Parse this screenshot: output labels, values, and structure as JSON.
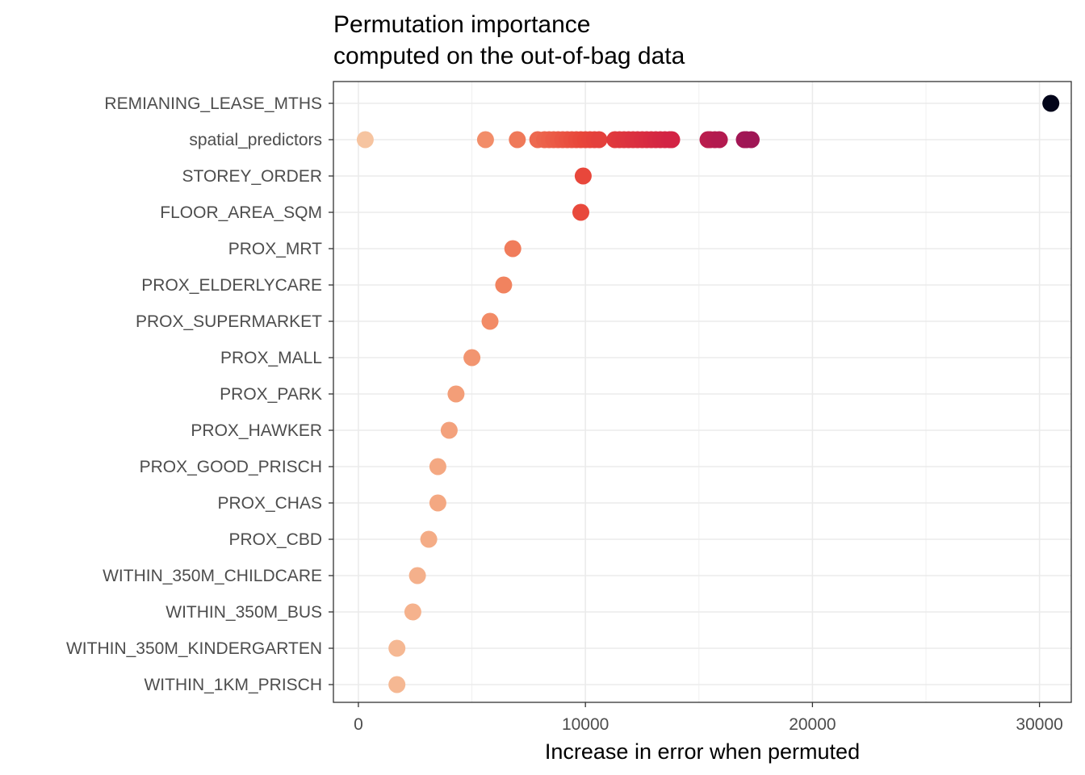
{
  "chart_data": {
    "type": "scatter",
    "title": "Permutation importance",
    "subtitle": "computed on the out-of-bag data",
    "xlabel": "Increase in error when permuted",
    "ylabel": "",
    "xlim": [
      -1100,
      31400
    ],
    "xticks": [
      0,
      10000,
      20000,
      30000
    ],
    "xtick_labels": [
      "0",
      "10000",
      "20000",
      "30000"
    ],
    "grid": true,
    "legend": "none",
    "colormap": "rocket (reversed)",
    "categories": [
      "REMIANING_LEASE_MTHS",
      "spatial_predictors",
      "STOREY_ORDER",
      "FLOOR_AREA_SQM",
      "PROX_MRT",
      "PROX_ELDERLYCARE",
      "PROX_SUPERMARKET",
      "PROX_MALL",
      "PROX_PARK",
      "PROX_HAWKER",
      "PROX_GOOD_PRISCH",
      "PROX_CHAS",
      "PROX_CBD",
      "WITHIN_350M_CHILDCARE",
      "WITHIN_350M_BUS",
      "WITHIN_350M_KINDERGARTEN",
      "WITHIN_1KM_PRISCH"
    ],
    "points": [
      {
        "variable": "REMIANING_LEASE_MTHS",
        "values": [
          30500
        ]
      },
      {
        "variable": "spatial_predictors",
        "values": [
          300,
          5600,
          7000,
          7900,
          8200,
          8400,
          8600,
          8800,
          9000,
          9200,
          9400,
          9600,
          9800,
          10000,
          10200,
          10400,
          10600,
          11300,
          11500,
          11700,
          11900,
          12100,
          12300,
          12500,
          12700,
          12900,
          13100,
          13300,
          13500,
          13700,
          13800,
          15400,
          15500,
          15700,
          15900,
          17000,
          17100,
          17300
        ]
      },
      {
        "variable": "STOREY_ORDER",
        "values": [
          9900
        ]
      },
      {
        "variable": "FLOOR_AREA_SQM",
        "values": [
          9800
        ]
      },
      {
        "variable": "PROX_MRT",
        "values": [
          6800
        ]
      },
      {
        "variable": "PROX_ELDERLYCARE",
        "values": [
          6400
        ]
      },
      {
        "variable": "PROX_SUPERMARKET",
        "values": [
          5800
        ]
      },
      {
        "variable": "PROX_MALL",
        "values": [
          5000
        ]
      },
      {
        "variable": "PROX_PARK",
        "values": [
          4300
        ]
      },
      {
        "variable": "PROX_HAWKER",
        "values": [
          4000
        ]
      },
      {
        "variable": "PROX_GOOD_PRISCH",
        "values": [
          3500
        ]
      },
      {
        "variable": "PROX_CHAS",
        "values": [
          3500
        ]
      },
      {
        "variable": "PROX_CBD",
        "values": [
          3100
        ]
      },
      {
        "variable": "WITHIN_350M_CHILDCARE",
        "values": [
          2600
        ]
      },
      {
        "variable": "WITHIN_350M_BUS",
        "values": [
          2400
        ]
      },
      {
        "variable": "WITHIN_350M_KINDERGARTEN",
        "values": [
          1700
        ]
      },
      {
        "variable": "WITHIN_1KM_PRISCH",
        "values": [
          1700
        ]
      }
    ]
  }
}
